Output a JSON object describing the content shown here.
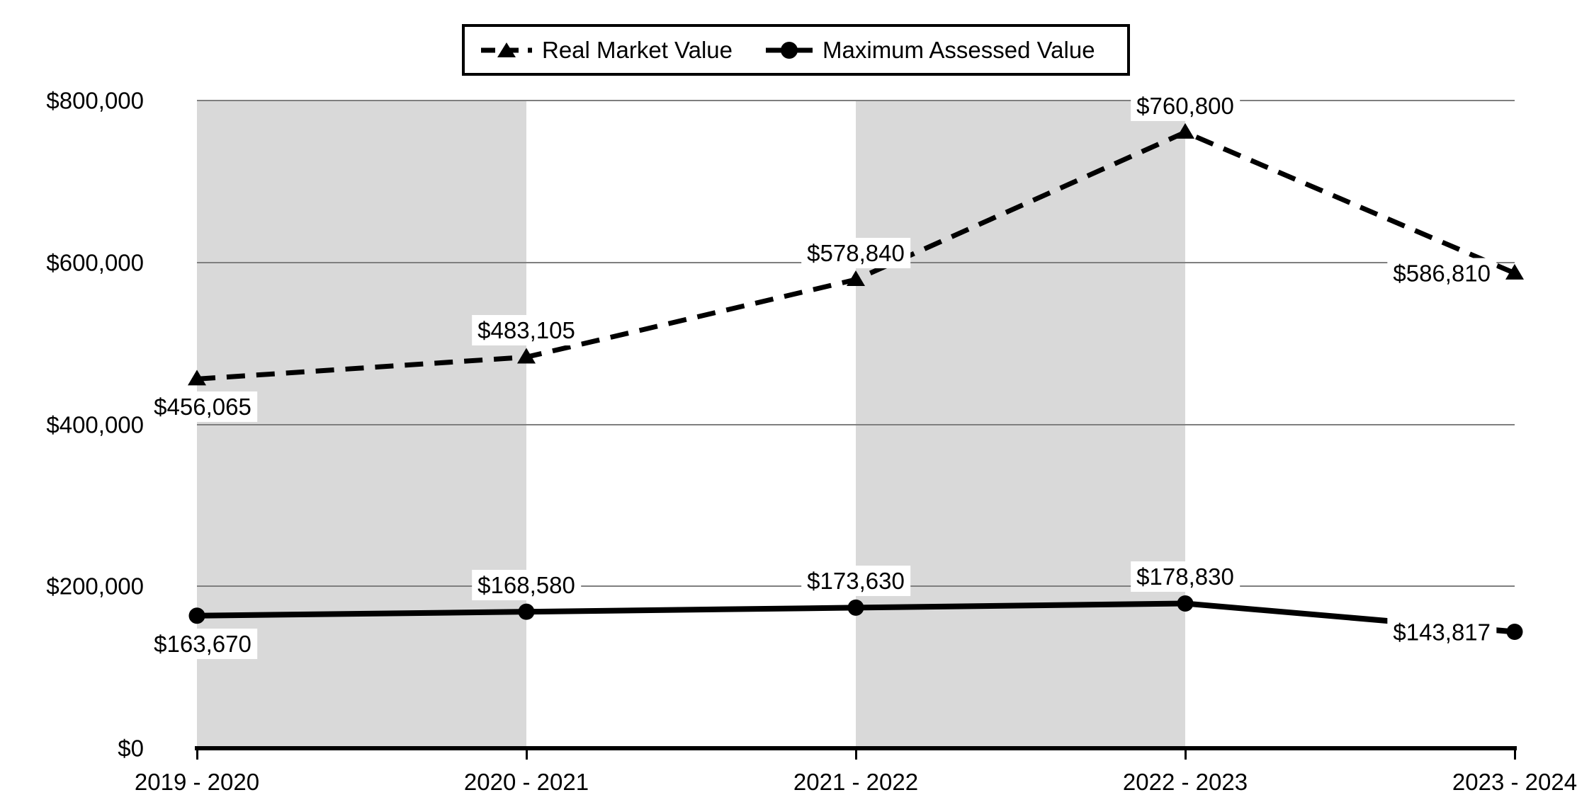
{
  "legend": {
    "items": [
      {
        "label": "Real Market Value"
      },
      {
        "label": "Maximum Assessed Value"
      }
    ]
  },
  "chart_data": {
    "type": "line",
    "title": "",
    "xlabel": "",
    "ylabel": "",
    "categories": [
      "2019 - 2020",
      "2020 - 2021",
      "2021 - 2022",
      "2022 - 2023",
      "2023 - 2024"
    ],
    "series": [
      {
        "name": "Real Market Value",
        "values": [
          456065,
          483105,
          578840,
          760800,
          586810
        ],
        "labels": [
          "$456,065",
          "$483,105",
          "$578,840",
          "$760,800",
          "$586,810"
        ],
        "label_positions": [
          "below",
          "above",
          "above",
          "above",
          "left"
        ],
        "line_style": "dashed",
        "marker": "triangle"
      },
      {
        "name": "Maximum Assessed Value",
        "values": [
          163670,
          168580,
          173630,
          178830,
          143817
        ],
        "labels": [
          "$163,670",
          "$168,580",
          "$173,630",
          "$178,830",
          "$143,817"
        ],
        "label_positions": [
          "below",
          "above",
          "above",
          "above",
          "left"
        ],
        "line_style": "solid",
        "marker": "circle"
      }
    ],
    "ylim": [
      0,
      800000
    ],
    "y_axis": {
      "ticks": [
        {
          "value": 0,
          "label": "$0"
        },
        {
          "value": 200000,
          "label": "$200,000"
        },
        {
          "value": 400000,
          "label": "$400,000"
        },
        {
          "value": 600000,
          "label": "$600,000"
        },
        {
          "value": 800000,
          "label": "$800,000"
        }
      ]
    },
    "grid": true,
    "legend_position": "top",
    "shaded_band_pairs": [
      [
        0,
        1
      ],
      [
        2,
        3
      ]
    ],
    "colors": {
      "band": "#d9d9d9",
      "gridline": "#7f7f7f",
      "series": "#000000",
      "label_bg": "#ffffff"
    }
  }
}
